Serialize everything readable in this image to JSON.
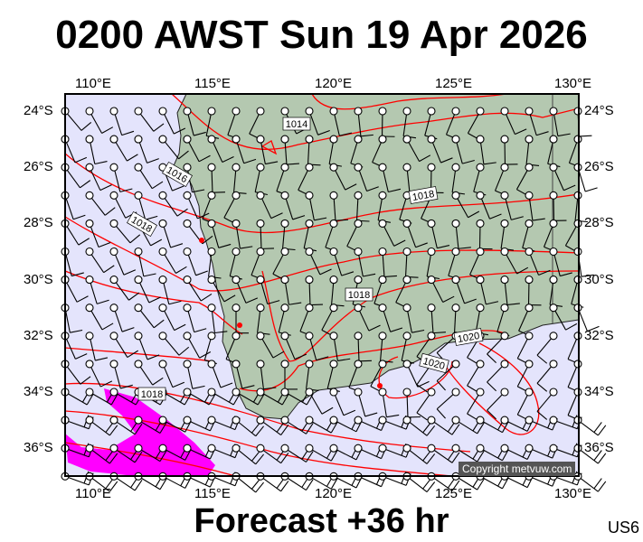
{
  "title": "0200 AWST Sun 19 Apr 2026",
  "footer": "Forecast +36 hr",
  "model_code": "US6",
  "copyright": "Copyright metvuw.com",
  "map": {
    "lon_range": [
      108.75,
      130.2
    ],
    "lat_range": [
      -37.1,
      -23.4
    ],
    "lon_ticks": [
      "110°E",
      "115°E",
      "120°E",
      "125°E",
      "130°E"
    ],
    "lat_ticks": [
      "24°S",
      "26°S",
      "28°S",
      "30°S",
      "32°S",
      "34°S",
      "36°S"
    ],
    "isobar_labels": [
      "1014",
      "1016",
      "1018",
      "1018",
      "1018",
      "1018",
      "1020",
      "1020"
    ],
    "colors": {
      "sea": "#e4e4fc",
      "land": "#b4c8b0",
      "isobar": "#ff0000",
      "precip": "#ff00ff",
      "station": "#ff0000"
    }
  }
}
